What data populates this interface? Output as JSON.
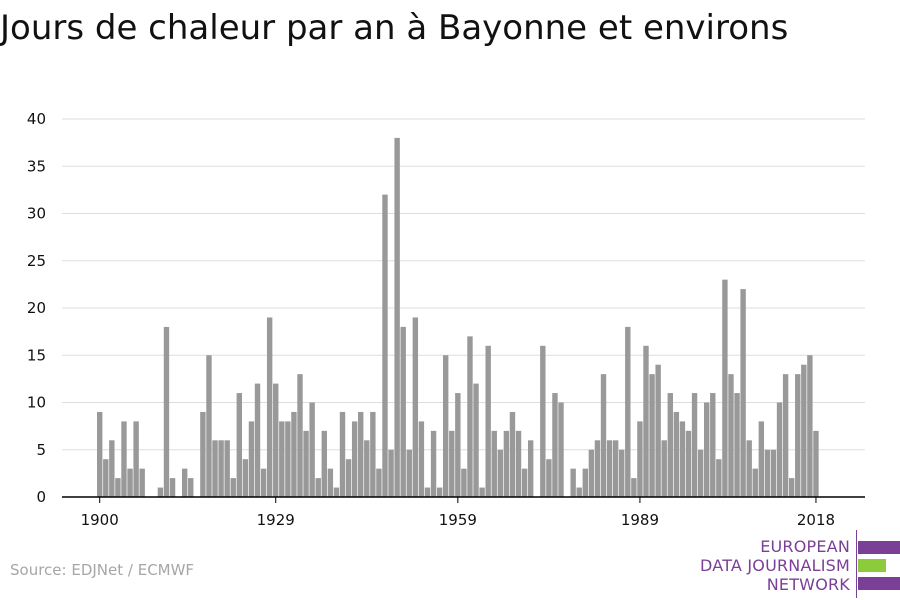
{
  "title": "Jours de chaleur par an à Bayonne et environs",
  "source": "Source: EDJNet / ECMWF",
  "logo": {
    "lines": [
      "EUROPEAN",
      "DATA JOURNALISM",
      "NETWORK"
    ],
    "colors": {
      "purple": "#7a3f96",
      "green": "#8ccc3a"
    }
  },
  "colors": {
    "bar": "#999999",
    "grid": "#dddddd",
    "axis": "#000000"
  },
  "chart_data": {
    "type": "bar",
    "title": "Jours de chaleur par an à Bayonne et environs",
    "xlabel": "",
    "ylabel": "",
    "x_start": 1900,
    "x_ticks": [
      1900,
      1929,
      1959,
      1989,
      2018
    ],
    "y_ticks": [
      0,
      5,
      10,
      15,
      20,
      25,
      30,
      35,
      40
    ],
    "ylim": [
      0,
      40
    ],
    "grid": true,
    "values": [
      9,
      4,
      6,
      2,
      8,
      3,
      8,
      3,
      0,
      0,
      1,
      18,
      2,
      0,
      3,
      2,
      0,
      9,
      15,
      6,
      6,
      6,
      2,
      11,
      4,
      8,
      12,
      3,
      19,
      12,
      8,
      8,
      9,
      13,
      7,
      10,
      2,
      7,
      3,
      1,
      9,
      4,
      8,
      9,
      6,
      9,
      3,
      32,
      5,
      38,
      18,
      5,
      19,
      8,
      1,
      7,
      1,
      15,
      7,
      11,
      3,
      17,
      12,
      1,
      16,
      7,
      5,
      7,
      9,
      7,
      3,
      6,
      0,
      16,
      4,
      11,
      10,
      0,
      3,
      1,
      3,
      5,
      6,
      13,
      6,
      6,
      5,
      18,
      2,
      8,
      16,
      13,
      14,
      6,
      11,
      9,
      8,
      7,
      11,
      5,
      10,
      11,
      4,
      23,
      13,
      11,
      22,
      6,
      3,
      8,
      5,
      5,
      10,
      13,
      2,
      13,
      14,
      15,
      7
    ]
  }
}
